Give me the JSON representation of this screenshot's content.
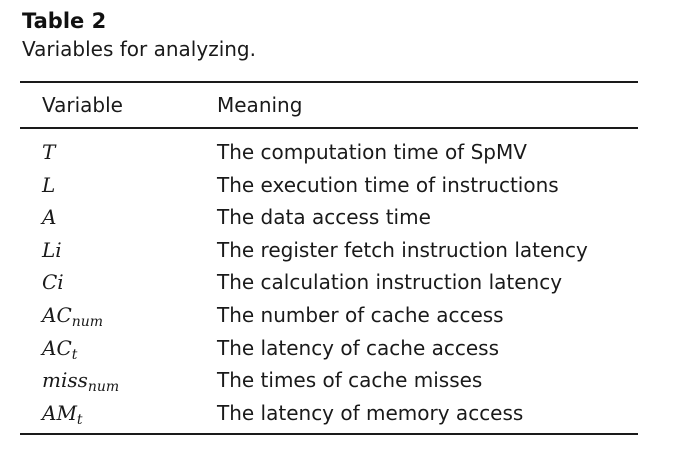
{
  "caption": {
    "label": "Table 2",
    "text": "Variables for analyzing."
  },
  "table": {
    "headers": {
      "variable": "Variable",
      "meaning": "Meaning"
    },
    "rows": [
      {
        "var_main": "T",
        "var_sub": "",
        "meaning": "The computation time of SpMV"
      },
      {
        "var_main": "L",
        "var_sub": "",
        "meaning": "The execution time of instructions"
      },
      {
        "var_main": "A",
        "var_sub": "",
        "meaning": "The data access time"
      },
      {
        "var_main": "Li",
        "var_sub": "",
        "meaning": "The register fetch instruction latency"
      },
      {
        "var_main": "Ci",
        "var_sub": "",
        "meaning": "The calculation instruction latency"
      },
      {
        "var_main": "AC",
        "var_sub": "num",
        "meaning": "The number of cache access"
      },
      {
        "var_main": "AC",
        "var_sub": "t",
        "meaning": "The latency of cache access"
      },
      {
        "var_main": "miss",
        "var_sub": "num",
        "meaning": "The times of cache misses"
      },
      {
        "var_main": "AM",
        "var_sub": "t",
        "meaning": "The latency of memory access"
      }
    ]
  }
}
